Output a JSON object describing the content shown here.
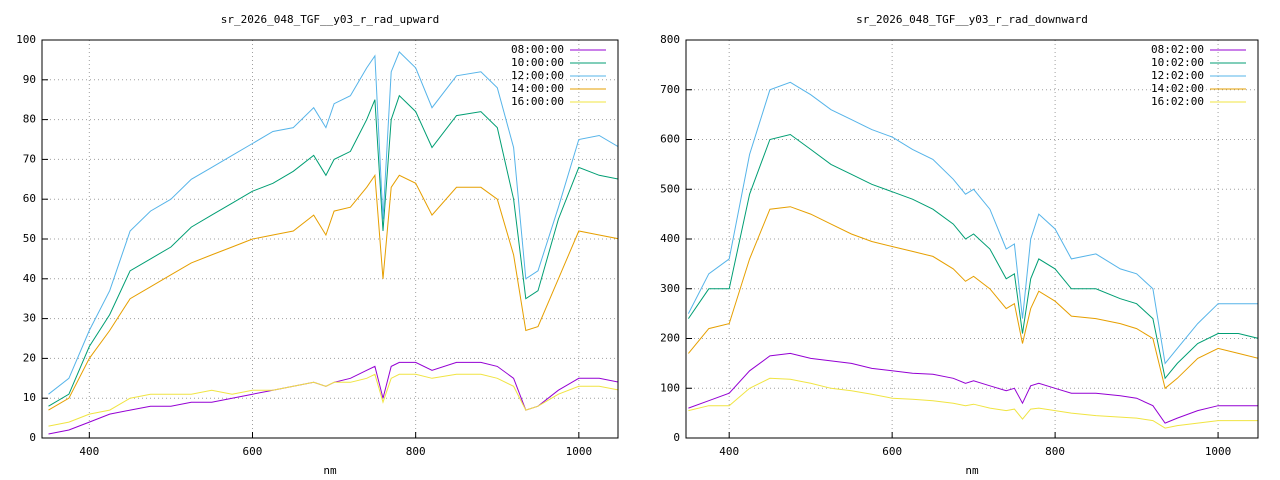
{
  "chart_data": [
    {
      "type": "line",
      "title": "sr_2026_048_TGF__y03_r_rad_upward",
      "xlabel": "nm",
      "grid": true,
      "legend": "upper right",
      "x": [
        350,
        375,
        400,
        425,
        450,
        475,
        500,
        525,
        550,
        575,
        600,
        625,
        650,
        675,
        690,
        700,
        720,
        740,
        750,
        760,
        770,
        780,
        800,
        820,
        850,
        880,
        900,
        920,
        935,
        950,
        975,
        1000,
        1025,
        1050
      ],
      "xlim": [
        342,
        1048
      ],
      "xticks": [
        400,
        600,
        800,
        1000
      ],
      "ylim": [
        0,
        100
      ],
      "yticks": [
        0,
        10,
        20,
        30,
        40,
        50,
        60,
        70,
        80,
        90,
        100
      ],
      "series": [
        {
          "name": "08:00:00",
          "color": "#9400d3",
          "values": [
            1,
            2,
            4,
            6,
            7,
            8,
            8,
            9,
            9,
            10,
            11,
            12,
            13,
            14,
            13,
            14,
            15,
            17,
            18,
            10,
            18,
            19,
            19,
            17,
            19,
            19,
            18,
            15,
            7,
            8,
            12,
            15,
            15,
            14
          ]
        },
        {
          "name": "10:00:00",
          "color": "#009e73",
          "values": [
            8,
            11,
            23,
            31,
            42,
            45,
            48,
            53,
            56,
            59,
            62,
            64,
            67,
            71,
            66,
            70,
            72,
            80,
            85,
            52,
            80,
            86,
            82,
            73,
            81,
            82,
            78,
            60,
            35,
            37,
            55,
            68,
            66,
            65
          ]
        },
        {
          "name": "12:00:00",
          "color": "#56b4e9",
          "values": [
            11,
            15,
            27,
            37,
            52,
            57,
            60,
            65,
            68,
            71,
            74,
            77,
            78,
            83,
            78,
            84,
            86,
            93,
            96,
            55,
            92,
            97,
            93,
            83,
            91,
            92,
            88,
            73,
            40,
            42,
            58,
            75,
            76,
            73
          ]
        },
        {
          "name": "14:00:00",
          "color": "#e69f00",
          "values": [
            7,
            10,
            20,
            27,
            35,
            38,
            41,
            44,
            46,
            48,
            50,
            51,
            52,
            56,
            51,
            57,
            58,
            63,
            66,
            40,
            63,
            66,
            64,
            56,
            63,
            63,
            60,
            46,
            27,
            28,
            40,
            52,
            51,
            50
          ]
        },
        {
          "name": "16:00:00",
          "color": "#f0e442",
          "values": [
            3,
            4,
            6,
            7,
            10,
            11,
            11,
            11,
            12,
            11,
            12,
            12,
            13,
            14,
            13,
            14,
            14,
            15,
            16,
            9,
            15,
            16,
            16,
            15,
            16,
            16,
            15,
            13,
            7,
            8,
            11,
            13,
            13,
            12
          ]
        }
      ]
    },
    {
      "type": "line",
      "title": "sr_2026_048_TGF__y03_r_rad_downward",
      "xlabel": "nm",
      "grid": true,
      "legend": "upper right",
      "x": [
        350,
        375,
        400,
        425,
        450,
        475,
        500,
        525,
        550,
        575,
        600,
        625,
        650,
        675,
        690,
        700,
        720,
        740,
        750,
        760,
        770,
        780,
        800,
        820,
        850,
        880,
        900,
        920,
        935,
        950,
        975,
        1000,
        1025,
        1050
      ],
      "xlim": [
        347,
        1049
      ],
      "xticks": [
        400,
        600,
        800,
        1000
      ],
      "ylim": [
        0,
        800
      ],
      "yticks": [
        0,
        100,
        200,
        300,
        400,
        500,
        600,
        700,
        800
      ],
      "series": [
        {
          "name": "08:02:00",
          "color": "#9400d3",
          "values": [
            60,
            75,
            90,
            135,
            165,
            170,
            160,
            155,
            150,
            140,
            135,
            130,
            128,
            120,
            110,
            115,
            105,
            95,
            100,
            70,
            105,
            110,
            100,
            90,
            90,
            85,
            80,
            65,
            30,
            40,
            55,
            65,
            65,
            65
          ]
        },
        {
          "name": "10:02:00",
          "color": "#009e73",
          "values": [
            240,
            300,
            300,
            490,
            600,
            610,
            580,
            550,
            530,
            510,
            495,
            480,
            460,
            430,
            400,
            410,
            380,
            320,
            330,
            210,
            320,
            360,
            340,
            300,
            300,
            280,
            270,
            240,
            120,
            150,
            190,
            210,
            210,
            200
          ]
        },
        {
          "name": "12:02:00",
          "color": "#56b4e9",
          "values": [
            250,
            330,
            360,
            570,
            700,
            715,
            690,
            660,
            640,
            620,
            605,
            580,
            560,
            520,
            490,
            500,
            460,
            380,
            390,
            240,
            400,
            450,
            420,
            360,
            370,
            340,
            330,
            300,
            150,
            180,
            230,
            270,
            270,
            270
          ]
        },
        {
          "name": "14:02:00",
          "color": "#e69f00",
          "values": [
            170,
            220,
            230,
            360,
            460,
            465,
            450,
            430,
            410,
            395,
            385,
            375,
            365,
            340,
            315,
            325,
            300,
            260,
            270,
            190,
            260,
            295,
            275,
            245,
            240,
            230,
            220,
            200,
            100,
            120,
            160,
            180,
            170,
            160
          ]
        },
        {
          "name": "16:02:00",
          "color": "#f0e442",
          "values": [
            55,
            65,
            65,
            100,
            120,
            118,
            110,
            100,
            95,
            88,
            80,
            78,
            75,
            70,
            65,
            68,
            60,
            55,
            58,
            38,
            58,
            60,
            55,
            50,
            45,
            42,
            40,
            35,
            20,
            25,
            30,
            35,
            35,
            35
          ]
        }
      ]
    }
  ]
}
